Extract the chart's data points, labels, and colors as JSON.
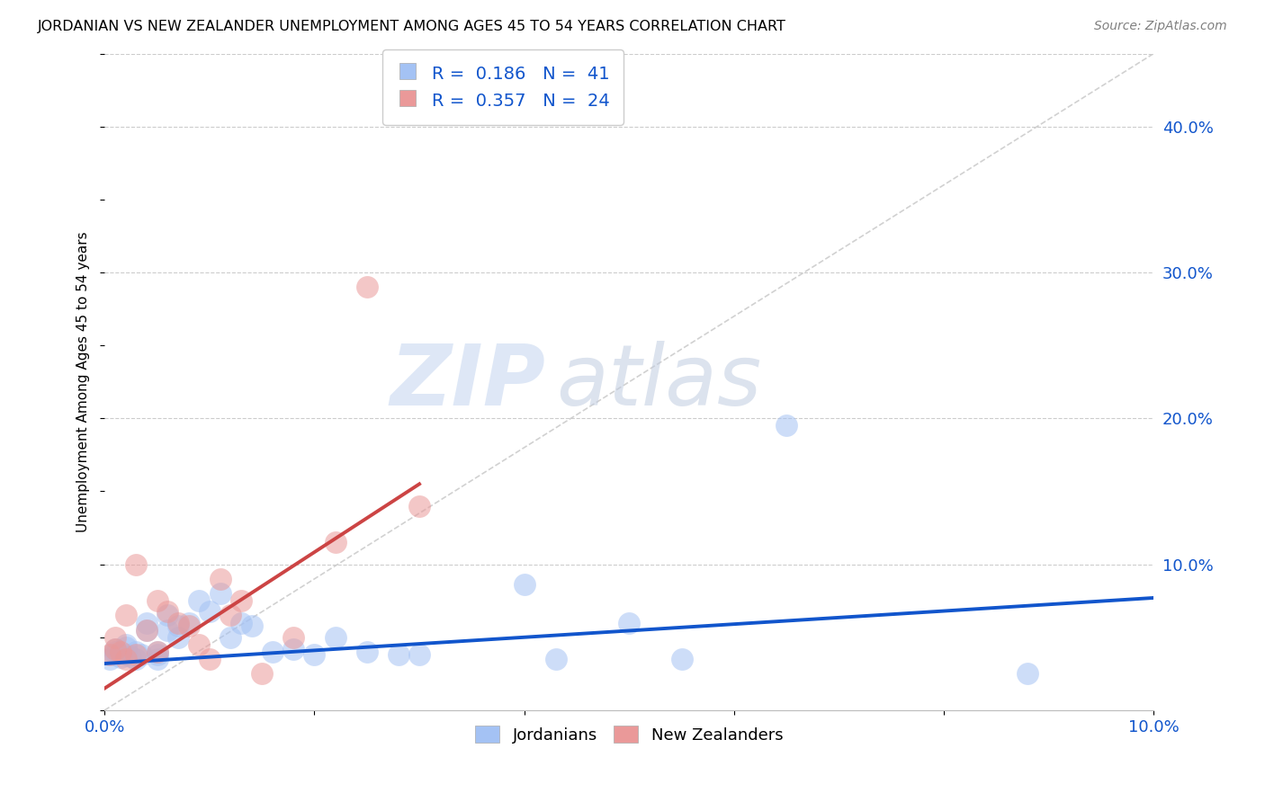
{
  "title": "JORDANIAN VS NEW ZEALANDER UNEMPLOYMENT AMONG AGES 45 TO 54 YEARS CORRELATION CHART",
  "source": "Source: ZipAtlas.com",
  "ylabel": "Unemployment Among Ages 45 to 54 years",
  "x_min": 0.0,
  "x_max": 0.1,
  "y_min": 0.0,
  "y_max": 0.45,
  "legend1_R": "0.186",
  "legend1_N": "41",
  "legend2_R": "0.357",
  "legend2_N": "24",
  "blue_color": "#a4c2f4",
  "pink_color": "#ea9999",
  "blue_line_color": "#1155cc",
  "pink_line_color": "#cc4444",
  "diagonal_color": "#cccccc",
  "watermark_zip": "ZIP",
  "watermark_atlas": "atlas",
  "jordanians_x": [
    0.0005,
    0.001,
    0.001,
    0.001,
    0.0015,
    0.002,
    0.002,
    0.002,
    0.0025,
    0.003,
    0.003,
    0.0035,
    0.004,
    0.004,
    0.005,
    0.005,
    0.005,
    0.006,
    0.006,
    0.007,
    0.007,
    0.008,
    0.009,
    0.01,
    0.011,
    0.012,
    0.013,
    0.014,
    0.016,
    0.018,
    0.02,
    0.022,
    0.025,
    0.028,
    0.03,
    0.04,
    0.043,
    0.05,
    0.055,
    0.065,
    0.088
  ],
  "jordanians_y": [
    0.035,
    0.04,
    0.038,
    0.042,
    0.036,
    0.038,
    0.043,
    0.045,
    0.037,
    0.04,
    0.035,
    0.038,
    0.06,
    0.055,
    0.035,
    0.038,
    0.04,
    0.065,
    0.055,
    0.058,
    0.05,
    0.06,
    0.075,
    0.068,
    0.08,
    0.05,
    0.06,
    0.058,
    0.04,
    0.042,
    0.038,
    0.05,
    0.04,
    0.038,
    0.038,
    0.086,
    0.035,
    0.06,
    0.035,
    0.195,
    0.025
  ],
  "nz_x": [
    0.0005,
    0.001,
    0.001,
    0.0015,
    0.002,
    0.002,
    0.003,
    0.003,
    0.004,
    0.005,
    0.005,
    0.006,
    0.007,
    0.008,
    0.009,
    0.01,
    0.011,
    0.012,
    0.013,
    0.015,
    0.018,
    0.022,
    0.025,
    0.03
  ],
  "nz_y": [
    0.038,
    0.042,
    0.05,
    0.04,
    0.035,
    0.065,
    0.038,
    0.1,
    0.055,
    0.04,
    0.075,
    0.068,
    0.06,
    0.058,
    0.045,
    0.035,
    0.09,
    0.065,
    0.075,
    0.025,
    0.05,
    0.115,
    0.29,
    0.14
  ],
  "blue_line_x0": 0.0,
  "blue_line_y0": 0.032,
  "blue_line_x1": 0.1,
  "blue_line_y1": 0.077,
  "pink_line_x0": 0.0,
  "pink_line_y0": 0.015,
  "pink_line_x1": 0.03,
  "pink_line_y1": 0.155
}
